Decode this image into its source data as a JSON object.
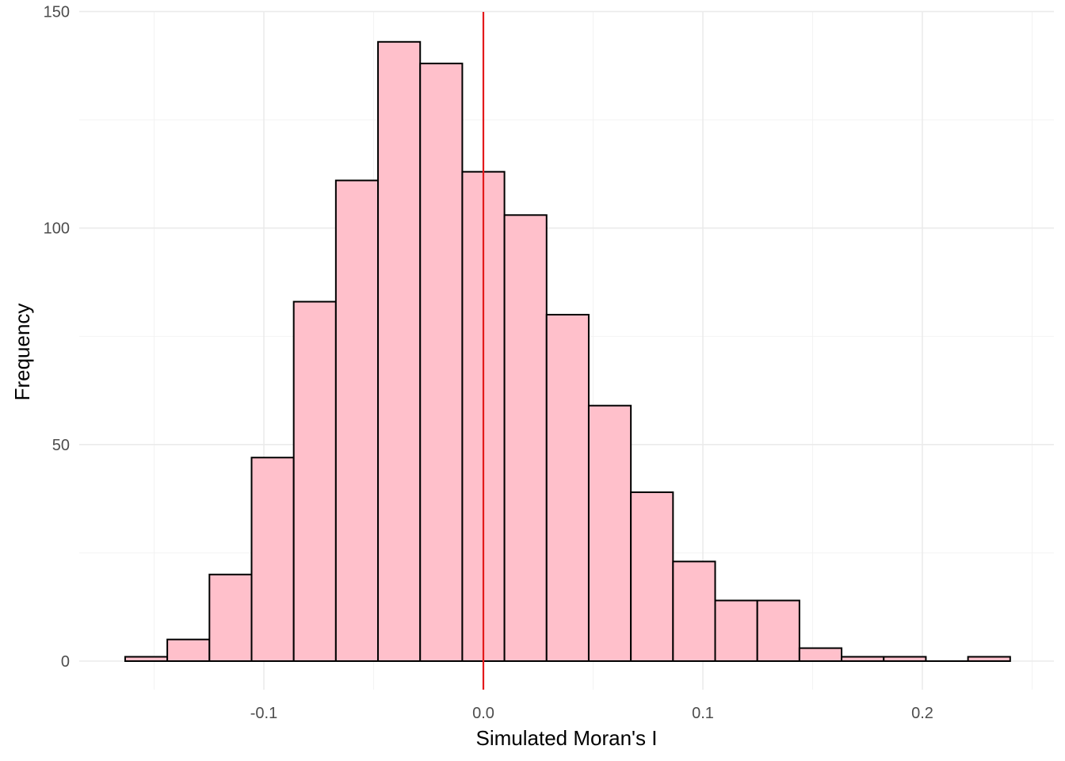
{
  "chart_data": {
    "type": "bar",
    "subtype": "histogram",
    "title": "",
    "xlabel": "Simulated Moran's I",
    "ylabel": "Frequency",
    "xlim": [
      -0.17,
      0.25
    ],
    "ylim": [
      -7,
      150
    ],
    "x_ticks": [
      -0.1,
      0.0,
      0.1,
      0.2
    ],
    "x_tick_labels": [
      "-0.1",
      "0.0",
      "0.1",
      "0.2"
    ],
    "y_ticks": [
      0,
      50,
      100,
      150
    ],
    "y_tick_labels": [
      "0",
      "50",
      "100",
      "150"
    ],
    "bin_width": 0.0192,
    "bin_centers": [
      -0.1536,
      -0.1344,
      -0.1152,
      -0.096,
      -0.0768,
      -0.0576,
      -0.0384,
      -0.0192,
      0.0,
      0.0192,
      0.0384,
      0.0576,
      0.0768,
      0.096,
      0.1152,
      0.1344,
      0.1536,
      0.1728,
      0.192,
      0.2112,
      0.2304
    ],
    "counts": [
      1,
      5,
      20,
      47,
      83,
      111,
      143,
      138,
      113,
      103,
      80,
      59,
      39,
      23,
      14,
      14,
      3,
      1,
      1,
      0,
      1
    ],
    "reference_line": {
      "x": 0.0,
      "color": "#e31a1c"
    },
    "bar_fill": "#ffc0cb",
    "bar_stroke": "#000000",
    "grid": true,
    "legend": "none"
  }
}
